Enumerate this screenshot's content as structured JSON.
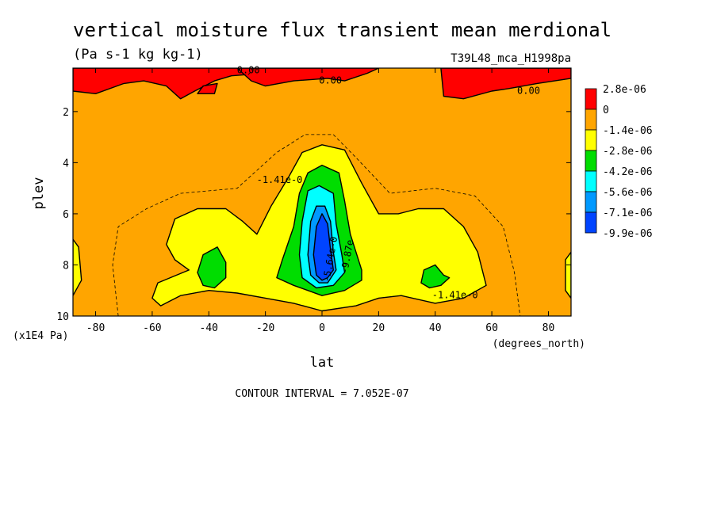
{
  "chart_data": {
    "type": "contour",
    "title": "vertical moisture flux transient mean merdional",
    "subtitle": "(Pa s-1 kg kg-1)",
    "dataset_label": "T39L48_mca_H1998pa",
    "xlabel": "lat",
    "x_units": "(degrees_north)",
    "ylabel": "plev",
    "y_units": "(x1E4 Pa)",
    "xlim": [
      -88,
      88
    ],
    "ylim": [
      10,
      0.3
    ],
    "y_inverted": true,
    "x_ticks": [
      -80,
      -60,
      -40,
      -20,
      0,
      20,
      40,
      60,
      80
    ],
    "x_tick_labels": [
      "-80",
      "-60",
      "-40",
      "-20",
      "0",
      "20",
      "40",
      "60",
      "80"
    ],
    "y_ticks": [
      2,
      4,
      6,
      8,
      10
    ],
    "y_tick_labels": [
      "2",
      "4",
      "6",
      "8",
      "10"
    ],
    "footer": "CONTOUR INTERVAL = 7.052E-07",
    "colorbar": {
      "levels": [
        "2.8e-06",
        "0",
        "-1.4e-06",
        "-2.8e-06",
        "-4.2e-06",
        "-5.6e-06",
        "-7.1e-06",
        "-9.9e-06"
      ],
      "colors": [
        "#ff0000",
        "#ffa500",
        "#ffff00",
        "#00dd00",
        "#00ffff",
        "#0099ff",
        "#0044ff"
      ]
    },
    "contour_labels": [
      {
        "text": "0.00",
        "lat": -26,
        "plev": 0.5
      },
      {
        "text": "0.00",
        "lat": 3,
        "plev": 0.9
      },
      {
        "text": "0.00",
        "lat": 73,
        "plev": 1.3
      },
      {
        "text": "-1.41e-0",
        "lat": -15,
        "plev": 4.8
      },
      {
        "text": "-5.64e-0",
        "lat": 4,
        "plev": 7.8
      },
      {
        "text": "-9.87e",
        "lat": 10,
        "plev": 7.7
      },
      {
        "text": "-1.41e-0",
        "lat": 47,
        "plev": 9.3
      }
    ],
    "regions": [
      {
        "value": 0,
        "points": [
          [
            -88,
            0.3
          ],
          [
            88,
            0.3
          ],
          [
            88,
            10
          ],
          [
            -88,
            10
          ]
        ]
      },
      {
        "value": 2.8e-06,
        "points": [
          [
            -88,
            0.3
          ],
          [
            -88,
            1.2
          ],
          [
            -80,
            1.3
          ],
          [
            -70,
            0.9
          ],
          [
            -63,
            0.8
          ],
          [
            -55,
            1.0
          ],
          [
            -50,
            1.5
          ],
          [
            -45,
            1.2
          ],
          [
            -38,
            0.8
          ],
          [
            -32,
            0.6
          ],
          [
            -26,
            0.55
          ],
          [
            -24,
            0.3
          ]
        ]
      },
      {
        "value": 2.8e-06,
        "points": [
          [
            -44,
            1.3
          ],
          [
            -42,
            1.0
          ],
          [
            -37,
            0.9
          ],
          [
            -38,
            1.3
          ]
        ]
      },
      {
        "value": 2.8e-06,
        "points": [
          [
            -30,
            0.3
          ],
          [
            -25,
            0.8
          ],
          [
            -20,
            1.0
          ],
          [
            -10,
            0.8
          ],
          [
            2,
            0.7
          ],
          [
            8,
            0.8
          ],
          [
            16,
            0.5
          ],
          [
            20,
            0.3
          ]
        ]
      },
      {
        "value": 2.8e-06,
        "points": [
          [
            42,
            0.3
          ],
          [
            43,
            1.4
          ],
          [
            50,
            1.5
          ],
          [
            60,
            1.2
          ],
          [
            66,
            1.1
          ],
          [
            76,
            0.9
          ],
          [
            88,
            0.7
          ],
          [
            88,
            0.3
          ]
        ]
      },
      {
        "value": -1.4e-06,
        "points": [
          [
            -47,
            8.2
          ],
          [
            -52,
            7.8
          ],
          [
            -55,
            7.2
          ],
          [
            -52,
            6.2
          ],
          [
            -44,
            5.8
          ],
          [
            -34,
            5.8
          ],
          [
            -28,
            6.3
          ],
          [
            -23,
            6.8
          ],
          [
            -18,
            5.7
          ],
          [
            -12,
            4.6
          ],
          [
            -7,
            3.6
          ],
          [
            0,
            3.3
          ],
          [
            8,
            3.5
          ],
          [
            14,
            4.8
          ],
          [
            20,
            6.0
          ],
          [
            27,
            6.0
          ],
          [
            34,
            5.8
          ],
          [
            43,
            5.8
          ],
          [
            50,
            6.5
          ],
          [
            55,
            7.5
          ],
          [
            58,
            8.8
          ],
          [
            50,
            9.3
          ],
          [
            40,
            9.5
          ],
          [
            28,
            9.2
          ],
          [
            20,
            9.3
          ],
          [
            12,
            9.6
          ],
          [
            0,
            9.8
          ],
          [
            -10,
            9.5
          ],
          [
            -20,
            9.3
          ],
          [
            -30,
            9.1
          ],
          [
            -40,
            9.0
          ],
          [
            -50,
            9.2
          ],
          [
            -57,
            9.6
          ],
          [
            -60,
            9.3
          ],
          [
            -58,
            8.7
          ]
        ]
      },
      {
        "value": -1.4e-06,
        "points": [
          [
            -88,
            7.0
          ],
          [
            -86,
            7.3
          ],
          [
            -85,
            8.6
          ],
          [
            -88,
            9.2
          ]
        ]
      },
      {
        "value": -1.4e-06,
        "points": [
          [
            88,
            7.5
          ],
          [
            86,
            7.8
          ],
          [
            86,
            9.0
          ],
          [
            88,
            9.3
          ]
        ]
      },
      {
        "value": -2.8e-06,
        "points": [
          [
            -10,
            8.8
          ],
          [
            -16,
            8.5
          ],
          [
            -14,
            7.8
          ],
          [
            -10,
            6.5
          ],
          [
            -8,
            5.2
          ],
          [
            -5,
            4.4
          ],
          [
            0,
            4.1
          ],
          [
            6,
            4.4
          ],
          [
            8,
            5.5
          ],
          [
            10,
            6.8
          ],
          [
            14,
            8.2
          ],
          [
            14,
            8.6
          ],
          [
            8,
            9.0
          ],
          [
            0,
            9.2
          ]
        ]
      },
      {
        "value": -2.8e-06,
        "points": [
          [
            -42,
            8.8
          ],
          [
            -44,
            8.3
          ],
          [
            -42,
            7.6
          ],
          [
            -37,
            7.3
          ],
          [
            -34,
            7.9
          ],
          [
            -34,
            8.5
          ],
          [
            -38,
            8.9
          ]
        ]
      },
      {
        "value": -2.8e-06,
        "points": [
          [
            35,
            8.7
          ],
          [
            36,
            8.2
          ],
          [
            40,
            8.0
          ],
          [
            43,
            8.4
          ],
          [
            45,
            8.5
          ],
          [
            42,
            8.8
          ],
          [
            38,
            8.9
          ]
        ]
      },
      {
        "value": -4.2e-06,
        "points": [
          [
            -7,
            8.5
          ],
          [
            -8,
            7.6
          ],
          [
            -7,
            6.3
          ],
          [
            -5,
            5.1
          ],
          [
            -1,
            4.9
          ],
          [
            4,
            5.2
          ],
          [
            5,
            6.4
          ],
          [
            7,
            7.6
          ],
          [
            8,
            8.3
          ],
          [
            4,
            8.8
          ],
          [
            -2,
            8.9
          ]
        ]
      },
      {
        "value": -5.6e-06,
        "points": [
          [
            -4,
            8.4
          ],
          [
            -5,
            7.6
          ],
          [
            -4,
            6.3
          ],
          [
            -2,
            5.7
          ],
          [
            1,
            5.7
          ],
          [
            3,
            6.3
          ],
          [
            4,
            7.5
          ],
          [
            5,
            8.2
          ],
          [
            2,
            8.7
          ],
          [
            -1,
            8.7
          ]
        ]
      },
      {
        "value": -7.1e-06,
        "points": [
          [
            -2,
            8.4
          ],
          [
            -3,
            7.6
          ],
          [
            -2,
            6.5
          ],
          [
            0,
            6.0
          ],
          [
            2,
            6.4
          ],
          [
            3,
            7.4
          ],
          [
            4,
            8.2
          ],
          [
            2,
            8.5
          ],
          [
            0,
            8.6
          ]
        ]
      }
    ]
  }
}
